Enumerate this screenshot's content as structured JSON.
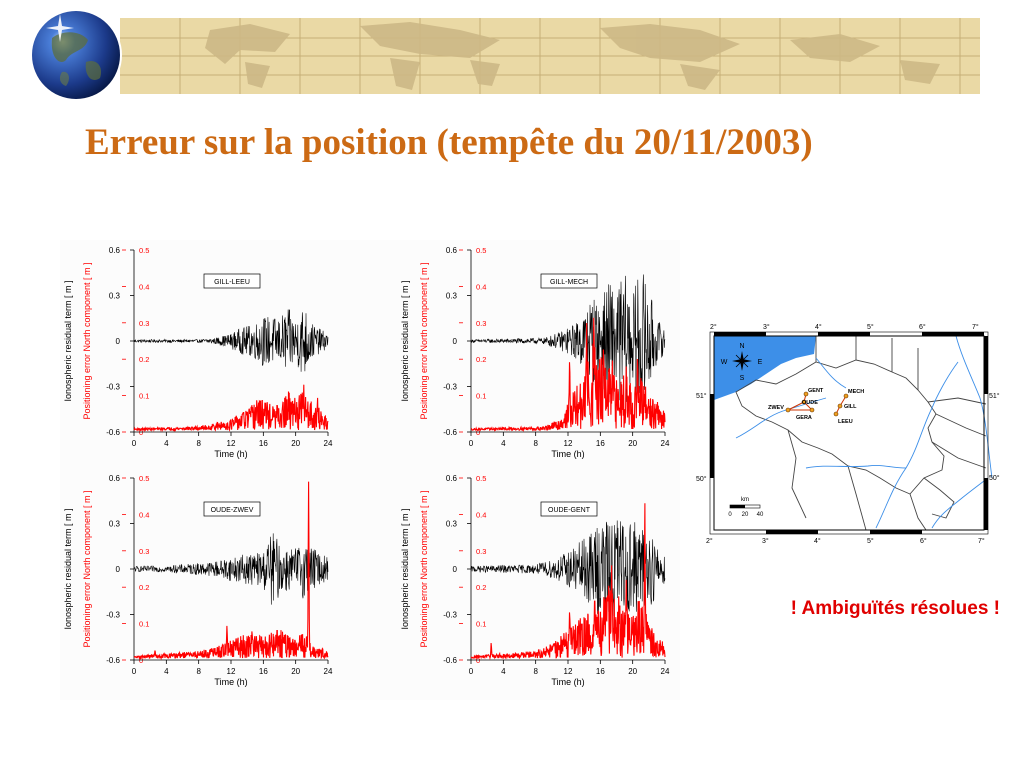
{
  "slide": {
    "title": "Erreur sur la position (tempête du 20/11/2003)",
    "note": "! Ambiguïtés résolues !"
  },
  "colors": {
    "title": "#cc6a14",
    "note": "#e00000",
    "ionospheric_series": "#000000",
    "positioning_series": "#ff0000",
    "banner_parchment": "#ead9a5",
    "sea": "#3d8fe8",
    "rivers": "#3d8fe8",
    "borders": "#444444"
  },
  "chart_data": [
    {
      "type": "line",
      "label": "GILL-LEEU",
      "xlabel": "Time (h)",
      "x_ticks": [
        0,
        4,
        8,
        12,
        16,
        20,
        24
      ],
      "xlim": [
        0,
        24
      ],
      "ylabel_left": "Ionospheric residual term [ m ]",
      "ylim_left": [
        -0.6,
        0.6
      ],
      "yticks_left": [
        "0.6",
        "0.3",
        "0",
        "-0.3",
        "-0.6"
      ],
      "ylabel_right": "Positioning error North component [ m ]",
      "ylim_right": [
        0,
        0.5
      ],
      "yticks_right": [
        "0.5",
        "0.4",
        "0.3",
        "0.2",
        "0.1",
        "0"
      ],
      "series": [
        {
          "axis": "left",
          "color": "#000000",
          "envelope": [
            [
              0,
              0.01
            ],
            [
              8,
              0.01
            ],
            [
              10,
              0.02
            ],
            [
              12,
              0.05
            ],
            [
              13,
              0.08
            ],
            [
              15,
              0.12
            ],
            [
              16,
              0.17
            ],
            [
              18,
              0.15
            ],
            [
              19,
              0.22
            ],
            [
              20,
              0.15
            ],
            [
              21,
              0.25
            ],
            [
              22,
              0.12
            ],
            [
              23,
              0.08
            ],
            [
              24,
              0.05
            ]
          ]
        },
        {
          "axis": "right",
          "color": "#ff0000",
          "base": 0.005,
          "envelope": [
            [
              0,
              0.005
            ],
            [
              8,
              0.01
            ],
            [
              10,
              0.02
            ],
            [
              12,
              0.03
            ],
            [
              14,
              0.06
            ],
            [
              16,
              0.09
            ],
            [
              17,
              0.07
            ],
            [
              18,
              0.06
            ],
            [
              19,
              0.11
            ],
            [
              20,
              0.08
            ],
            [
              21,
              0.12
            ],
            [
              22,
              0.08
            ],
            [
              23,
              0.06
            ],
            [
              24,
              0.04
            ]
          ],
          "spikes": [
            [
              15.2,
              0.1
            ],
            [
              17.7,
              0.09
            ],
            [
              19.9,
              0.1
            ],
            [
              21,
              0.13
            ],
            [
              22.7,
              0.1
            ]
          ]
        }
      ]
    },
    {
      "type": "line",
      "label": "GILL-MECH",
      "xlabel": "Time (h)",
      "x_ticks": [
        0,
        4,
        8,
        12,
        16,
        20,
        24
      ],
      "xlim": [
        0,
        24
      ],
      "ylabel_left": "Ionospheric residual term [ m ]",
      "ylim_left": [
        -0.6,
        0.6
      ],
      "yticks_left": [
        "0.6",
        "0.3",
        "0",
        "-0.3",
        "-0.6"
      ],
      "ylabel_right": "Positioning error North component [ m ]",
      "ylim_right": [
        0,
        0.5
      ],
      "yticks_right": [
        "0.5",
        "0.4",
        "0.3",
        "0.2",
        "0.1",
        "0"
      ],
      "series": [
        {
          "axis": "left",
          "color": "#000000",
          "envelope": [
            [
              0,
              0.01
            ],
            [
              9,
              0.02
            ],
            [
              11,
              0.06
            ],
            [
              13,
              0.12
            ],
            [
              14,
              0.2
            ],
            [
              15,
              0.3
            ],
            [
              16,
              0.25
            ],
            [
              17,
              0.4
            ],
            [
              18,
              0.35
            ],
            [
              19,
              0.45
            ],
            [
              20,
              0.3
            ],
            [
              21,
              0.5
            ],
            [
              22,
              0.35
            ],
            [
              23,
              0.15
            ],
            [
              24,
              0.08
            ]
          ]
        },
        {
          "axis": "right",
          "color": "#ff0000",
          "base": 0.005,
          "envelope": [
            [
              0,
              0.005
            ],
            [
              9,
              0.01
            ],
            [
              11,
              0.03
            ],
            [
              12,
              0.08
            ],
            [
              13,
              0.12
            ],
            [
              14,
              0.15
            ],
            [
              15,
              0.25
            ],
            [
              16,
              0.2
            ],
            [
              17,
              0.18
            ],
            [
              18,
              0.14
            ],
            [
              19,
              0.18
            ],
            [
              20,
              0.12
            ],
            [
              21,
              0.15
            ],
            [
              22,
              0.1
            ],
            [
              23,
              0.08
            ],
            [
              24,
              0.05
            ]
          ],
          "spikes": [
            [
              12.2,
              0.22
            ],
            [
              14.3,
              0.32
            ],
            [
              15.2,
              0.36
            ],
            [
              16.4,
              0.26
            ],
            [
              17.5,
              0.21
            ],
            [
              19.2,
              0.18
            ],
            [
              20.6,
              0.23
            ]
          ]
        }
      ]
    },
    {
      "type": "line",
      "label": "OUDE-ZWEV",
      "xlabel": "Time (h)",
      "x_ticks": [
        0,
        4,
        8,
        12,
        16,
        20,
        24
      ],
      "xlim": [
        0,
        24
      ],
      "ylabel_left": "Ionospheric residual term [ m ]",
      "ylim_left": [
        -0.6,
        0.6
      ],
      "yticks_left": [
        "0.6",
        "0.3",
        "0",
        "-0.3",
        "-0.6"
      ],
      "ylabel_right": "Positioning error North component [ m ]",
      "ylim_right": [
        0,
        0.5
      ],
      "yticks_right": [
        "0.5",
        "0.4",
        "0.3",
        "0.2",
        "0.1",
        "0"
      ],
      "series": [
        {
          "axis": "left",
          "color": "#000000",
          "envelope": [
            [
              0,
              0.02
            ],
            [
              2,
              0.02
            ],
            [
              4,
              0.02
            ],
            [
              8,
              0.04
            ],
            [
              10,
              0.05
            ],
            [
              12,
              0.08
            ],
            [
              14,
              0.1
            ],
            [
              16,
              0.12
            ],
            [
              17,
              0.25
            ],
            [
              18,
              0.18
            ],
            [
              19,
              0.15
            ],
            [
              20,
              0.14
            ],
            [
              21,
              0.2
            ],
            [
              22,
              0.15
            ],
            [
              23,
              0.1
            ],
            [
              24,
              0.08
            ]
          ]
        },
        {
          "axis": "right",
          "color": "#ff0000",
          "base": 0.005,
          "envelope": [
            [
              0,
              0.005
            ],
            [
              2,
              0.01
            ],
            [
              3,
              0.01
            ],
            [
              8,
              0.02
            ],
            [
              10,
              0.03
            ],
            [
              12,
              0.05
            ],
            [
              14,
              0.07
            ],
            [
              16,
              0.06
            ],
            [
              18,
              0.08
            ],
            [
              20,
              0.05
            ],
            [
              21,
              0.08
            ],
            [
              22,
              0.04
            ],
            [
              23,
              0.03
            ],
            [
              24,
              0.02
            ]
          ],
          "spikes": [
            [
              2.6,
              0.03
            ],
            [
              11.5,
              0.1
            ],
            [
              14.6,
              0.09
            ],
            [
              17.7,
              0.1
            ],
            [
              21.6,
              0.49
            ]
          ]
        }
      ]
    },
    {
      "type": "line",
      "label": "OUDE-GENT",
      "xlabel": "Time (h)",
      "x_ticks": [
        0,
        4,
        8,
        12,
        16,
        20,
        24
      ],
      "xlim": [
        0,
        24
      ],
      "ylabel_left": "Ionospheric residual term [ m ]",
      "ylim_left": [
        -0.6,
        0.6
      ],
      "yticks_left": [
        "0.6",
        "0.3",
        "0",
        "-0.3",
        "-0.6"
      ],
      "ylabel_right": "Positioning error North component [ m ]",
      "ylim_right": [
        0,
        0.5
      ],
      "yticks_right": [
        "0.5",
        "0.4",
        "0.3",
        "0.2",
        "0.1",
        "0"
      ],
      "series": [
        {
          "axis": "left",
          "color": "#000000",
          "envelope": [
            [
              0,
              0.02
            ],
            [
              8,
              0.03
            ],
            [
              10,
              0.06
            ],
            [
              12,
              0.12
            ],
            [
              14,
              0.2
            ],
            [
              15,
              0.25
            ],
            [
              16,
              0.35
            ],
            [
              17,
              0.3
            ],
            [
              18,
              0.4
            ],
            [
              19,
              0.3
            ],
            [
              20,
              0.35
            ],
            [
              21,
              0.25
            ],
            [
              22,
              0.3
            ],
            [
              23,
              0.15
            ],
            [
              24,
              0.1
            ]
          ]
        },
        {
          "axis": "right",
          "color": "#ff0000",
          "base": 0.005,
          "envelope": [
            [
              0,
              0.005
            ],
            [
              2,
              0.01
            ],
            [
              8,
              0.02
            ],
            [
              10,
              0.04
            ],
            [
              12,
              0.08
            ],
            [
              13,
              0.1
            ],
            [
              14,
              0.12
            ],
            [
              16,
              0.15
            ],
            [
              17,
              0.2
            ],
            [
              18,
              0.18
            ],
            [
              19,
              0.15
            ],
            [
              20,
              0.12
            ],
            [
              21,
              0.18
            ],
            [
              22,
              0.1
            ],
            [
              23,
              0.06
            ],
            [
              24,
              0.04
            ]
          ],
          "spikes": [
            [
              2.5,
              0.05
            ],
            [
              12.2,
              0.15
            ],
            [
              15.3,
              0.2
            ],
            [
              17.4,
              0.26
            ],
            [
              19.2,
              0.22
            ],
            [
              21.5,
              0.46
            ]
          ]
        }
      ]
    }
  ],
  "map": {
    "lon_ticks_top": [
      "2°",
      "3°",
      "4°",
      "5°",
      "6°",
      "7°"
    ],
    "lon_ticks_bottom": [
      "2°",
      "3°",
      "4°",
      "5°",
      "6°",
      "7°"
    ],
    "lat_ticks_left": [
      "51°",
      "50°"
    ],
    "lat_ticks_right": [
      "51°",
      "50°"
    ],
    "compass": {
      "n": "N",
      "s": "S",
      "e": "E",
      "w": "W"
    },
    "stations": [
      "GENT",
      "OUDE",
      "ZWEV",
      "GERA",
      "MECH",
      "GILL",
      "LEEU"
    ],
    "scale": {
      "unit": "km",
      "ticks": [
        "0",
        "20",
        "40"
      ]
    }
  }
}
